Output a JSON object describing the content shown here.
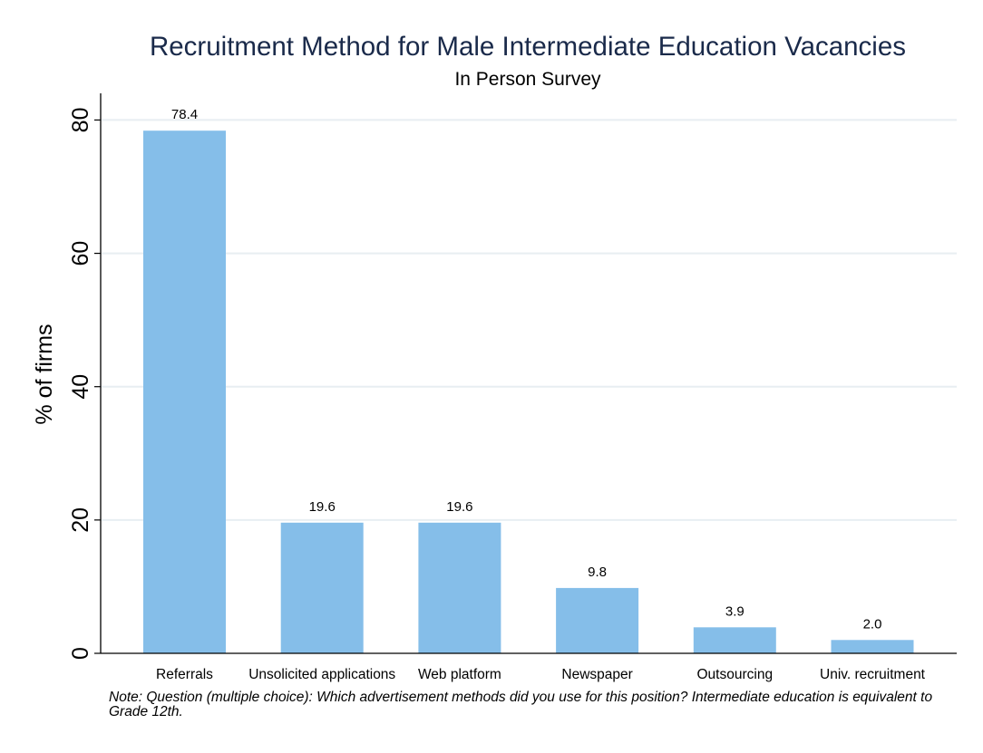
{
  "chart_data": {
    "type": "bar",
    "title": "Recruitment Method for Male Intermediate Education Vacancies",
    "subtitle": "In Person Survey",
    "xlabel": "",
    "ylabel": "% of firms",
    "ylim": [
      0,
      84
    ],
    "yticks": [
      "0",
      "20",
      "40",
      "60",
      "80"
    ],
    "ytick_values": [
      0,
      20,
      40,
      60,
      80
    ],
    "grid": true,
    "categories": [
      "Referrals",
      "Unsolicited applications",
      "Web platform",
      "Newspaper",
      "Outsourcing",
      "Univ. recruitment"
    ],
    "values": [
      78.4,
      19.6,
      19.6,
      9.8,
      3.9,
      2.0
    ],
    "value_labels": [
      "78.4",
      "19.6",
      "19.6",
      "9.8",
      "3.9",
      "2.0"
    ],
    "colors": {
      "bar": "#85bee9",
      "title": "#1a2a4a",
      "grid": "#e8eef2",
      "axis": "#000000"
    }
  },
  "note": "Note: Question (multiple choice): Which advertisement methods did you use for this position? Intermediate education is equivalent to Grade 12th."
}
